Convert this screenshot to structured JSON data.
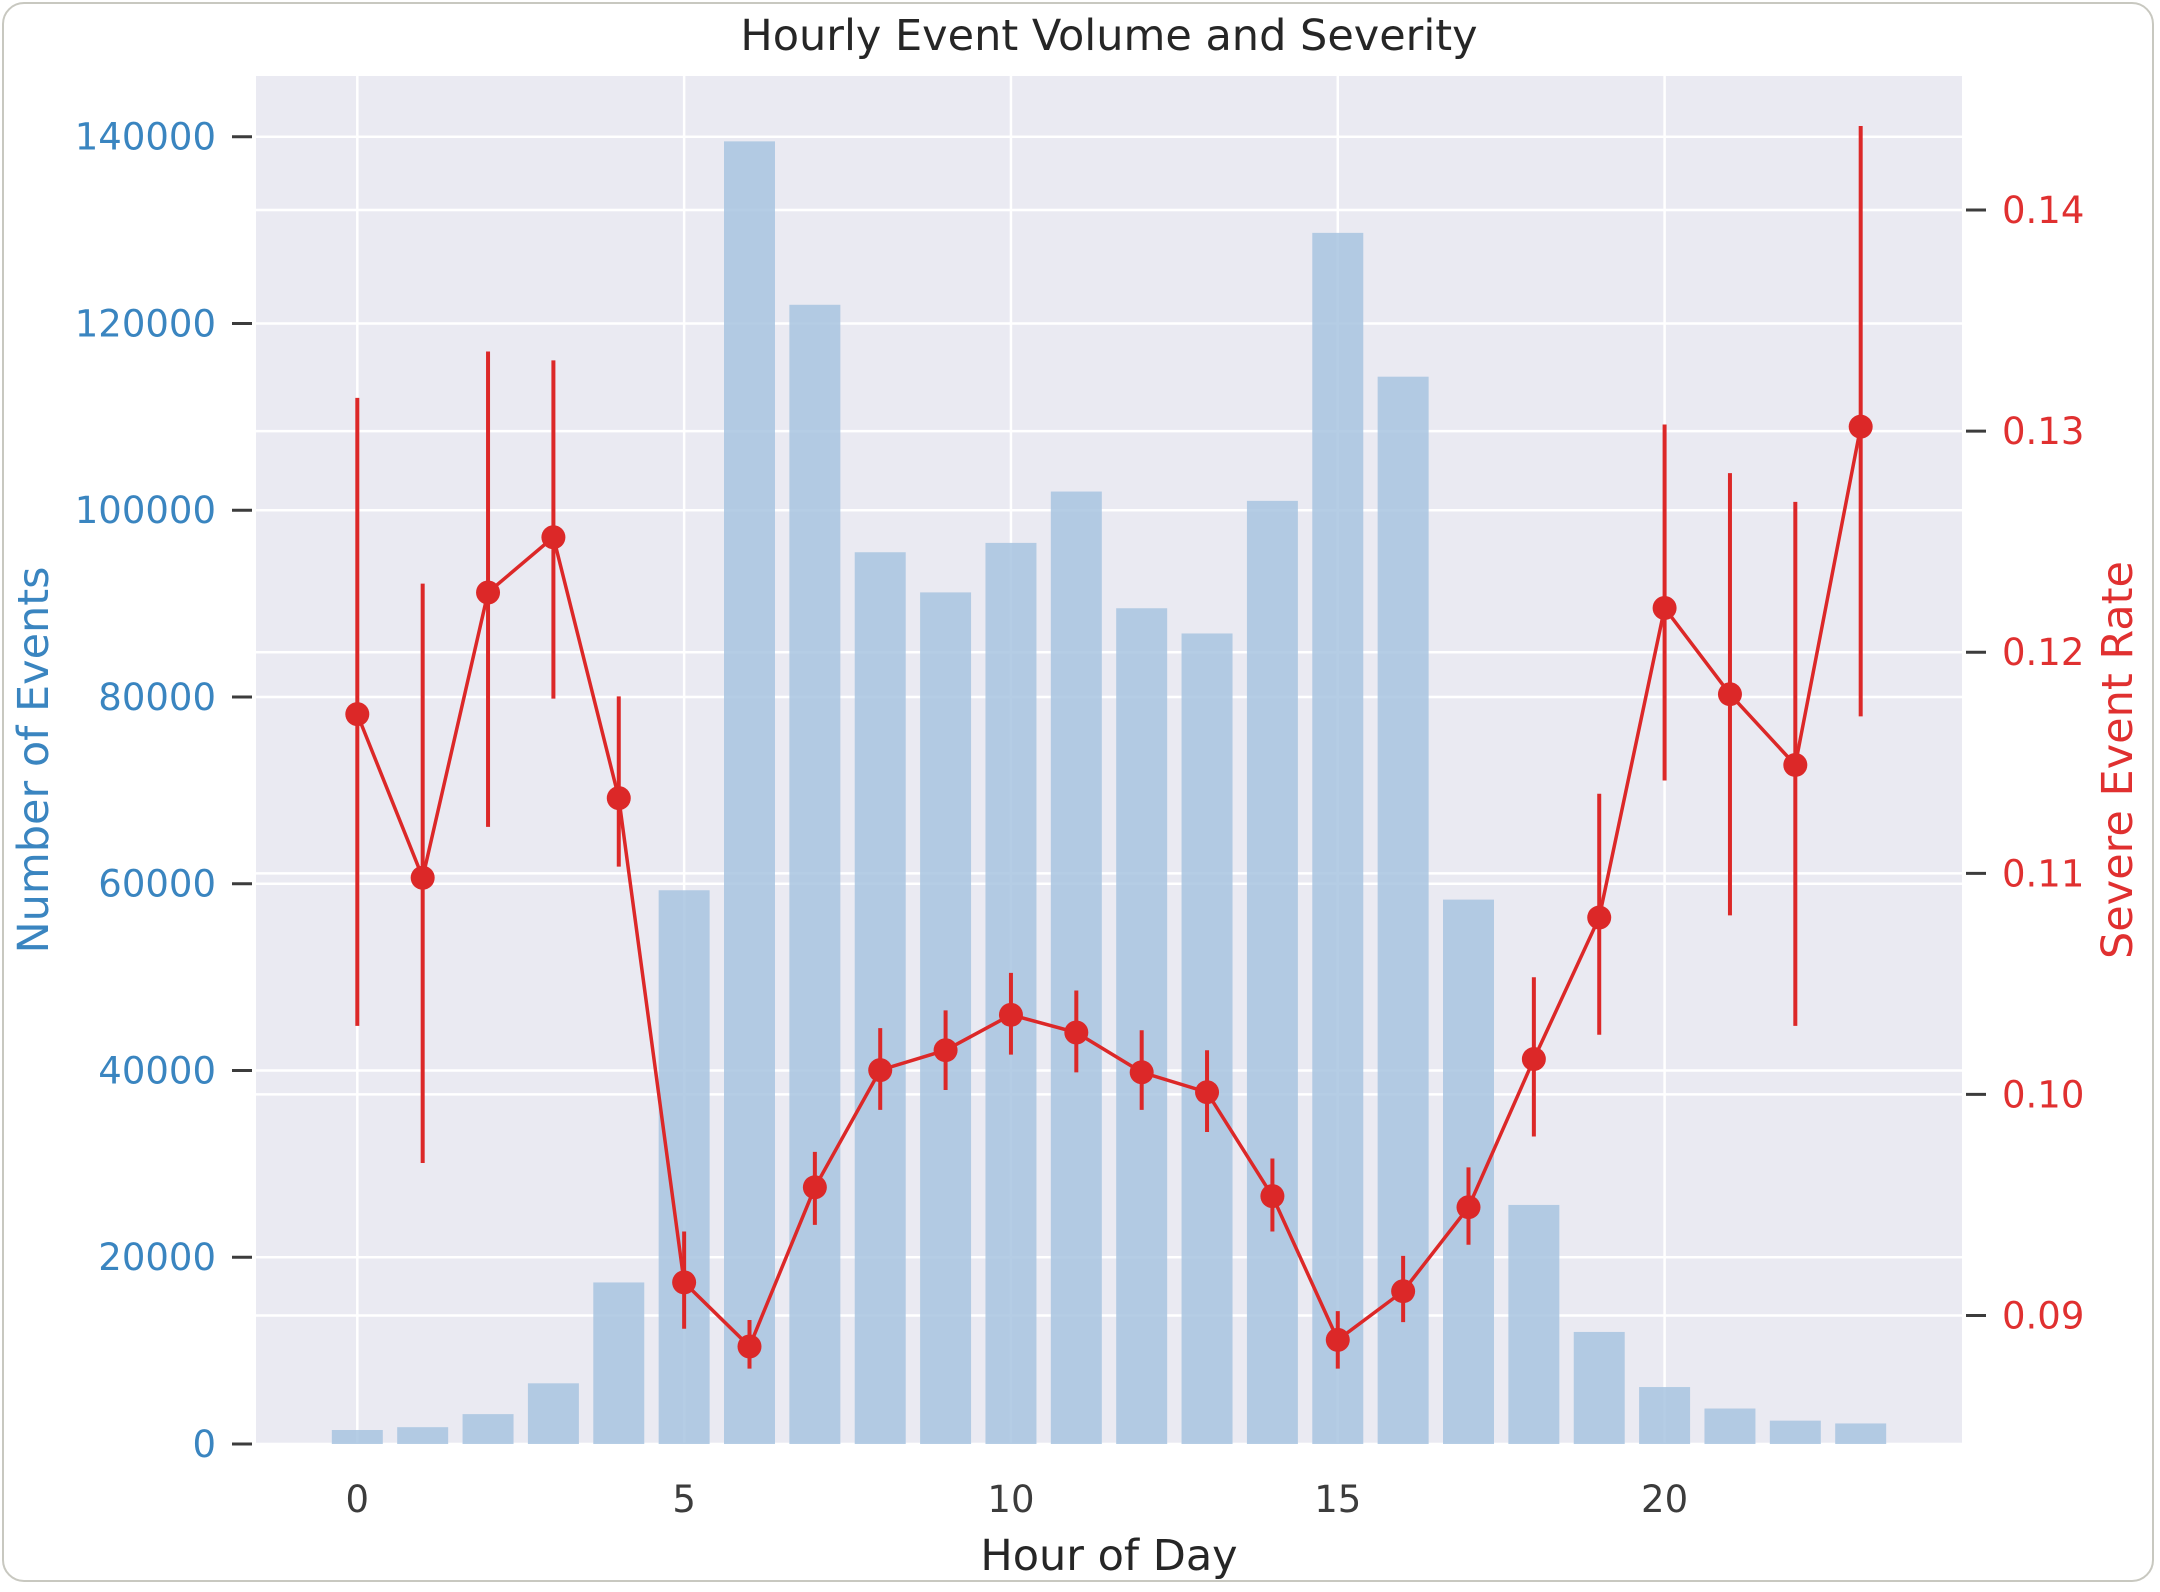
{
  "chart_data": {
    "type": "bar+line",
    "title": "Hourly Event Volume and Severity",
    "xlabel": "Hour of Day",
    "ylabel_left": "Number of Events",
    "ylabel_right": "Severe Event Rate",
    "x": [
      0,
      1,
      2,
      3,
      4,
      5,
      6,
      7,
      8,
      9,
      10,
      11,
      12,
      13,
      14,
      15,
      16,
      17,
      18,
      19,
      20,
      21,
      22,
      23
    ],
    "x_ticks": [
      "0",
      "5",
      "10",
      "15",
      "20"
    ],
    "xlim": [
      -1.55,
      24.55
    ],
    "bars": {
      "name": "Number of Events",
      "color": "#a8c4e0",
      "values": [
        1500,
        1800,
        3200,
        6500,
        17300,
        59300,
        139500,
        122000,
        95500,
        91200,
        96500,
        102000,
        89500,
        86800,
        101000,
        129700,
        114300,
        58300,
        25600,
        12000,
        6100,
        3800,
        2500,
        2200
      ],
      "ylim": [
        0,
        146500
      ],
      "yticks": [
        0,
        20000,
        40000,
        60000,
        80000,
        100000,
        120000,
        140000
      ],
      "ytick_labels": [
        "0",
        "20000",
        "40000",
        "60000",
        "80000",
        "100000",
        "120000",
        "140000"
      ]
    },
    "line": {
      "name": "Severe Event Rate",
      "color": "#dc2828",
      "values": [
        0.1172,
        0.1098,
        0.1227,
        0.1252,
        0.1134,
        0.0915,
        0.0886,
        0.0958,
        0.1011,
        0.102,
        0.1036,
        0.1028,
        0.101,
        0.1001,
        0.0954,
        0.0889,
        0.0911,
        0.0949,
        0.1016,
        0.108,
        0.122,
        0.1181,
        0.1149,
        0.1302
      ],
      "err_low": [
        0.1031,
        0.0969,
        0.1121,
        0.1179,
        0.1103,
        0.0894,
        0.0876,
        0.0941,
        0.0993,
        0.1002,
        0.1018,
        0.101,
        0.0993,
        0.0983,
        0.0938,
        0.0876,
        0.0897,
        0.0932,
        0.0981,
        0.1027,
        0.1142,
        0.1081,
        0.1031,
        0.1171
      ],
      "err_high": [
        0.1315,
        0.1231,
        0.1336,
        0.1332,
        0.118,
        0.0938,
        0.0898,
        0.0974,
        0.103,
        0.1038,
        0.1055,
        0.1047,
        0.1029,
        0.102,
        0.0971,
        0.0902,
        0.0927,
        0.0967,
        0.1053,
        0.1136,
        0.1303,
        0.1281,
        0.1268,
        0.1438
      ],
      "ylim": [
        0.08419,
        0.14606
      ],
      "yticks": [
        0.09,
        0.1,
        0.11,
        0.12,
        0.13,
        0.14
      ],
      "ytick_labels": [
        "0.09",
        "0.10",
        "0.11",
        "0.12",
        "0.13",
        "0.14"
      ]
    },
    "grid": true,
    "background": "#eaeaf2"
  }
}
